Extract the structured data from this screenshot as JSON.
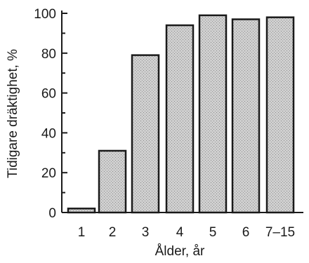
{
  "chart_data": {
    "type": "bar",
    "categories": [
      "1",
      "2",
      "3",
      "4",
      "5",
      "6",
      "7–15"
    ],
    "values": [
      2,
      31,
      79,
      94,
      99,
      97,
      98
    ],
    "title": "",
    "xlabel": "Ålder, år",
    "ylabel": "Tidigare dräktighet, %",
    "ylim": [
      0,
      100
    ],
    "yticks": [
      0,
      20,
      40,
      60,
      80,
      100
    ],
    "grid": false,
    "colors": {
      "bar_fill": "#c6c6c6",
      "bar_stroke": "#1a1a1a",
      "axis": "#1a1a1a"
    }
  }
}
